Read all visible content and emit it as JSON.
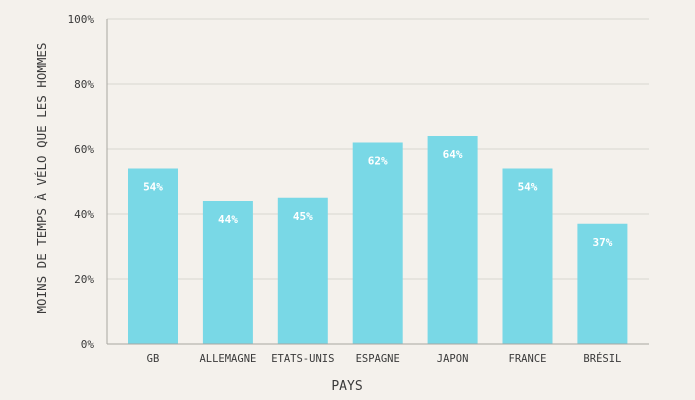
{
  "chart_data": {
    "type": "bar",
    "title": "",
    "xlabel": "PAYS",
    "ylabel": "MOINS DE TEMPS À VÉLO QUE LES HOMMES",
    "categories": [
      "GB",
      "ALLEMAGNE",
      "ETATS-UNIS",
      "ESPAGNE",
      "JAPON",
      "FRANCE",
      "BRÉSIL"
    ],
    "values": [
      54,
      44,
      45,
      62,
      64,
      54,
      37
    ],
    "value_labels": [
      "54%",
      "44%",
      "45%",
      "62%",
      "64%",
      "54%",
      "37%"
    ],
    "ylim": [
      0,
      100
    ],
    "yticks": [
      0,
      20,
      40,
      60,
      80,
      100
    ],
    "ytick_labels": [
      "0%",
      "20%",
      "40%",
      "60%",
      "80%",
      "100%"
    ],
    "grid": true,
    "colors": {
      "background": "#f4f1ec",
      "bar": "#79d8e6",
      "grid": "#d9d6d1",
      "axis": "#a9a6a1",
      "text": "#3a3a3a",
      "bar_label": "#ffffff"
    }
  }
}
